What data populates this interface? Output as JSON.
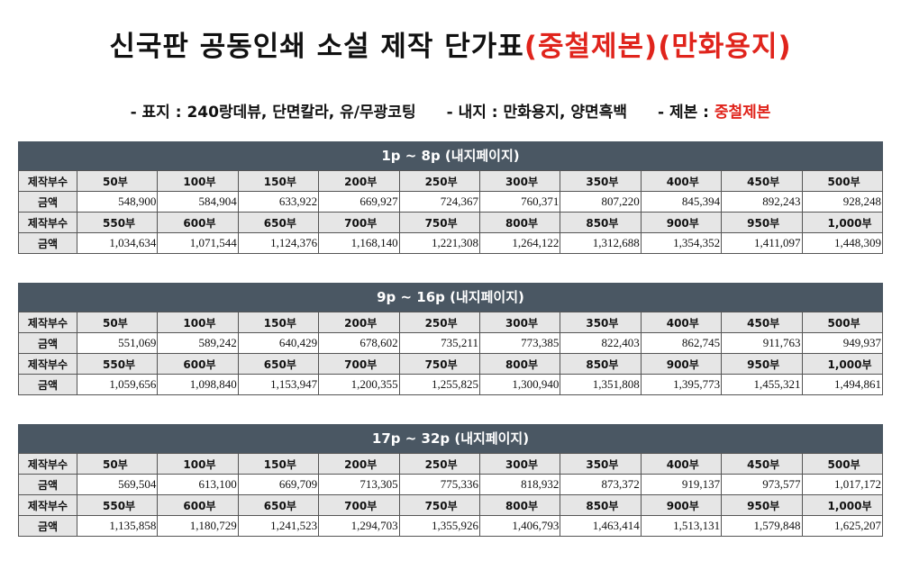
{
  "title": {
    "main": "신국판  공동인쇄  소설  제작  단가표",
    "highlight": "(중철제본)(만화용지)"
  },
  "specs": {
    "cover": "- 표지 : 240랑데뷰, 단면칼라, 유/무광코팅",
    "inner": "- 내지 : 만화용지, 양면흑백",
    "binding_label": "- 제본 : ",
    "binding_value": "중철제본"
  },
  "labels": {
    "quantity": "제작부수",
    "price": "금액"
  },
  "sections": [
    {
      "header": "1p ~ 8p (내지페이지)",
      "blocks": [
        {
          "quantities": [
            "50부",
            "100부",
            "150부",
            "200부",
            "250부",
            "300부",
            "350부",
            "400부",
            "450부",
            "500부"
          ],
          "prices": [
            "548,900",
            "584,904",
            "633,922",
            "669,927",
            "724,367",
            "760,371",
            "807,220",
            "845,394",
            "892,243",
            "928,248"
          ]
        },
        {
          "quantities": [
            "550부",
            "600부",
            "650부",
            "700부",
            "750부",
            "800부",
            "850부",
            "900부",
            "950부",
            "1,000부"
          ],
          "prices": [
            "1,034,634",
            "1,071,544",
            "1,124,376",
            "1,168,140",
            "1,221,308",
            "1,264,122",
            "1,312,688",
            "1,354,352",
            "1,411,097",
            "1,448,309"
          ]
        }
      ]
    },
    {
      "header": "9p ~ 16p (내지페이지)",
      "blocks": [
        {
          "quantities": [
            "50부",
            "100부",
            "150부",
            "200부",
            "250부",
            "300부",
            "350부",
            "400부",
            "450부",
            "500부"
          ],
          "prices": [
            "551,069",
            "589,242",
            "640,429",
            "678,602",
            "735,211",
            "773,385",
            "822,403",
            "862,745",
            "911,763",
            "949,937"
          ]
        },
        {
          "quantities": [
            "550부",
            "600부",
            "650부",
            "700부",
            "750부",
            "800부",
            "850부",
            "900부",
            "950부",
            "1,000부"
          ],
          "prices": [
            "1,059,656",
            "1,098,840",
            "1,153,947",
            "1,200,355",
            "1,255,825",
            "1,300,940",
            "1,351,808",
            "1,395,773",
            "1,455,321",
            "1,494,861"
          ]
        }
      ]
    },
    {
      "header": "17p ~ 32p (내지페이지)",
      "blocks": [
        {
          "quantities": [
            "50부",
            "100부",
            "150부",
            "200부",
            "250부",
            "300부",
            "350부",
            "400부",
            "450부",
            "500부"
          ],
          "prices": [
            "569,504",
            "613,100",
            "669,709",
            "713,305",
            "775,336",
            "818,932",
            "873,372",
            "919,137",
            "973,577",
            "1,017,172"
          ]
        },
        {
          "quantities": [
            "550부",
            "600부",
            "650부",
            "700부",
            "750부",
            "800부",
            "850부",
            "900부",
            "950부",
            "1,000부"
          ],
          "prices": [
            "1,135,858",
            "1,180,729",
            "1,241,523",
            "1,294,703",
            "1,355,926",
            "1,406,793",
            "1,463,414",
            "1,513,131",
            "1,579,848",
            "1,625,207"
          ]
        }
      ]
    }
  ]
}
